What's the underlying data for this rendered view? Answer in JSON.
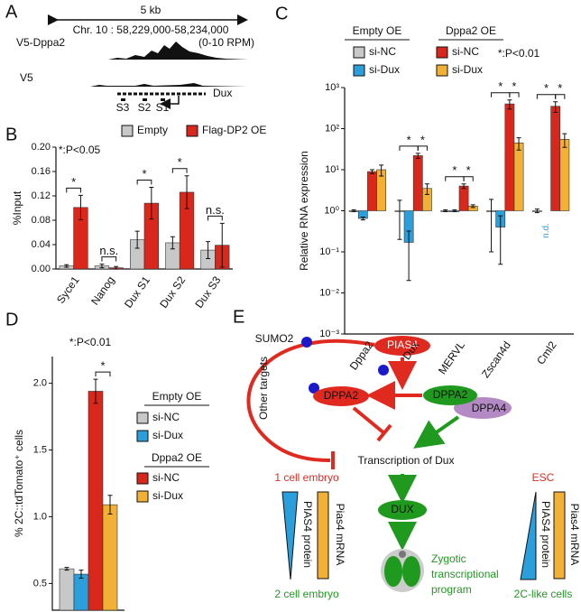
{
  "panel_labels": [
    "A",
    "B",
    "C",
    "D",
    "E"
  ],
  "genome_tracks": {
    "scale": "5 kb",
    "region": "Chr. 10 : 58,229,000-58,234,000",
    "tracks": [
      "V5-Dppa2",
      "V5"
    ],
    "range": "(0-10 RPM)",
    "gene": "Dux",
    "sites": [
      "S3",
      "S2",
      "S1"
    ]
  },
  "chart_data": [
    {
      "type": "bar",
      "categories": [
        "Syce1",
        "Nanog",
        "Dux S1",
        "Dux S2",
        "Dux S3"
      ],
      "series": [
        {
          "name": "Empty",
          "color": "#c8c8c8",
          "values": [
            0.005,
            0.005,
            0.048,
            0.043,
            0.031
          ],
          "errors": [
            0.002,
            0.003,
            0.014,
            0.01,
            0.014
          ]
        },
        {
          "name": "Flag-DP2 OE",
          "color": "#d9271c",
          "values": [
            0.101,
            0.002,
            0.108,
            0.126,
            0.039
          ],
          "errors": [
            0.02,
            0.002,
            0.026,
            0.027,
            0.036
          ]
        }
      ],
      "ylabel": "%Input",
      "ylim": [
        0,
        0.2
      ],
      "yticks": [
        {
          "value": 0,
          "label": "0.00"
        },
        0.04,
        0.08,
        0.12,
        0.16,
        {
          "value": 0.2,
          "label": "0.20"
        }
      ],
      "note": "*:P<0.05",
      "significance": [
        "*",
        "n.s.",
        "*",
        "*",
        "n.s."
      ]
    },
    {
      "type": "bar",
      "log_scale": true,
      "categories": [
        "Dppa2",
        "Dux",
        "MERVL",
        "Zscan4d",
        "Cml2"
      ],
      "legend_groups": [
        "Empty OE",
        "Dppa2 OE"
      ],
      "series": [
        {
          "name": "si-NC",
          "color": "#c8c8c8",
          "values": [
            1,
            1,
            1,
            1,
            1
          ],
          "errors": [
            0.05,
            0.8,
            0.05,
            0.9,
            0.1
          ]
        },
        {
          "name": "si-Dux",
          "color": "#2a9fdb",
          "values": [
            0.65,
            0.17,
            1,
            0.4,
            null
          ],
          "errors": [
            0.05,
            0.15,
            0.05,
            0.35,
            null
          ],
          "value_labels": [
            null,
            null,
            null,
            null,
            "n.d."
          ]
        },
        {
          "name": "si-NC",
          "color": "#d9271c",
          "values": [
            9,
            22,
            4,
            400,
            350
          ],
          "errors": [
            1,
            3,
            0.5,
            100,
            100
          ]
        },
        {
          "name": "si-Dux",
          "color": "#f2b134",
          "values": [
            10,
            3.5,
            1.3,
            45,
            55
          ],
          "errors": [
            3,
            1,
            0.1,
            15,
            20
          ]
        }
      ],
      "ylabel": "Relative RNA expression",
      "ylim": [
        0.001,
        1000
      ],
      "yticks": [
        {
          "value": 0.001,
          "label": "10⁻³"
        },
        {
          "value": 0.01,
          "label": "10⁻²"
        },
        {
          "value": 0.1,
          "label": "10⁻¹"
        },
        {
          "value": 1,
          "label": "10⁰"
        },
        {
          "value": 10,
          "label": "10¹"
        },
        {
          "value": 100,
          "label": "10²"
        },
        {
          "value": 1000,
          "label": "10³"
        }
      ],
      "note": "*:P<0.01",
      "significance": [
        null,
        "*",
        "*",
        "*",
        "*"
      ]
    },
    {
      "type": "bar",
      "categories": [
        null
      ],
      "legend_groups": [
        "Empty OE",
        "Dppa2 OE"
      ],
      "series": [
        {
          "name": "si-NC",
          "color": "#c8c8c8",
          "values": [
            0.61
          ],
          "errors": [
            0.01
          ]
        },
        {
          "name": "si-Dux",
          "color": "#2a9fdb",
          "values": [
            0.57
          ],
          "errors": [
            0.03
          ]
        },
        {
          "name": "si-NC",
          "color": "#d9271c",
          "values": [
            1.94
          ],
          "errors": [
            0.09
          ]
        },
        {
          "name": "si-Dux",
          "color": "#f2b134",
          "values": [
            1.09
          ],
          "errors": [
            0.07
          ]
        }
      ],
      "ylabel": "% 2C::tdTomato⁺ cells",
      "ylim": [
        0.3,
        2.2
      ],
      "yticks": [
        0.5,
        {
          "value": 1,
          "label": "1.0"
        },
        1.5,
        {
          "value": 2,
          "label": "2.0"
        }
      ],
      "note": "*:P<0.01",
      "significance": [
        "*"
      ]
    }
  ],
  "diagram": {
    "nodes": [
      "SUMO2",
      "PIAS4",
      "Other targets",
      "DPPA2",
      "DPPA2",
      "DPPA4",
      "Transcription of Dux",
      "1 cell embryo",
      "PIAS4 protein",
      "Pias4 mRNA",
      "2 cell embryo",
      "DUX",
      "Zygotic",
      "transcriptional",
      "program",
      "ESC",
      "PIAS4 protein",
      "Pias4 mRNA",
      "2C-like cells"
    ]
  }
}
